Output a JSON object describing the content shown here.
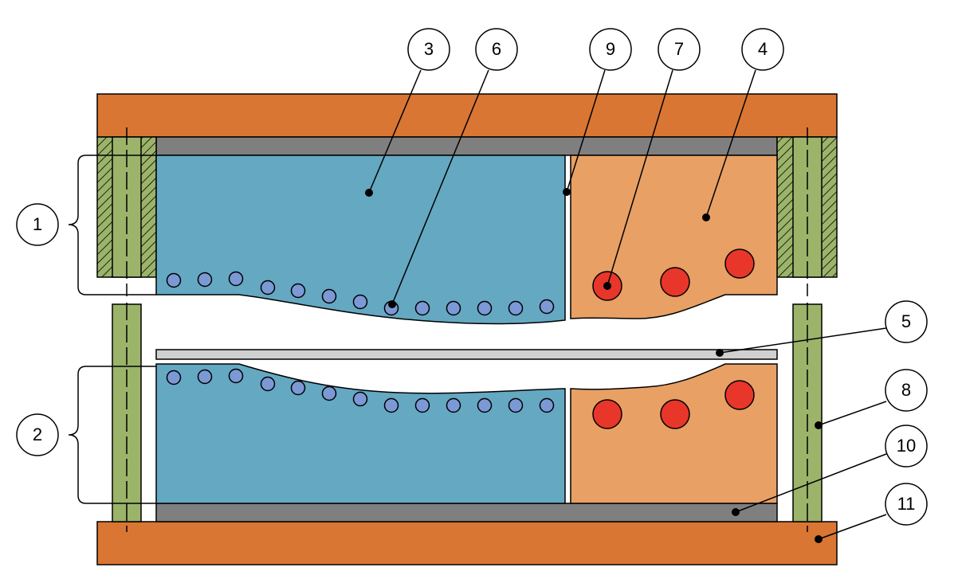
{
  "callouts": {
    "c1": "1",
    "c2": "2",
    "c3": "3",
    "c4": "4",
    "c5": "5",
    "c6": "6",
    "c7": "7",
    "c8": "8",
    "c9": "9",
    "c10": "10",
    "c11": "11"
  },
  "colors": {
    "platen": "#D97634",
    "backing_plate": "#7F7F7F",
    "blue_block": "#64A8C2",
    "orange_block": "#E8A064",
    "small_circle": "#7C99D6",
    "large_circle": "#E8362A",
    "separator": "#D0D0D0",
    "guide_pillar": "#9BB46A",
    "outline": "#000000"
  }
}
